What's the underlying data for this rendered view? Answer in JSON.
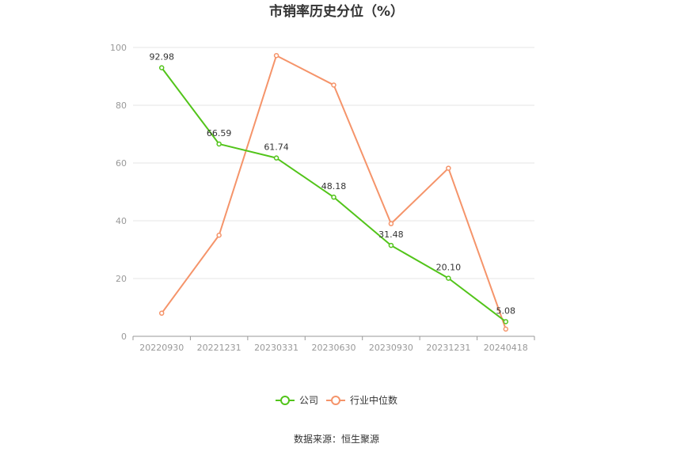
{
  "chart_data": {
    "type": "line",
    "title": "市销率历史分位（%）",
    "categories": [
      "20220930",
      "20221231",
      "20230331",
      "20230630",
      "20230930",
      "20231231",
      "20240418"
    ],
    "yticks": [
      "0",
      "20",
      "40",
      "60",
      "80",
      "100"
    ],
    "ylim": [
      0,
      100
    ],
    "grid": true,
    "legend_position": "bottom-center",
    "series": [
      {
        "name": "公司",
        "color": "#52c41a",
        "values": [
          92.98,
          66.59,
          61.74,
          48.18,
          31.48,
          20.1,
          5.08
        ],
        "labels": [
          "92.98",
          "66.59",
          "61.74",
          "48.18",
          "31.48",
          "20.10",
          "5.08"
        ]
      },
      {
        "name": "行业中位数",
        "color": "#f5946a",
        "values": [
          8.0,
          35.0,
          97.2,
          87.0,
          39.0,
          58.2,
          2.5
        ]
      }
    ]
  },
  "source": "数据来源：恒生聚源"
}
